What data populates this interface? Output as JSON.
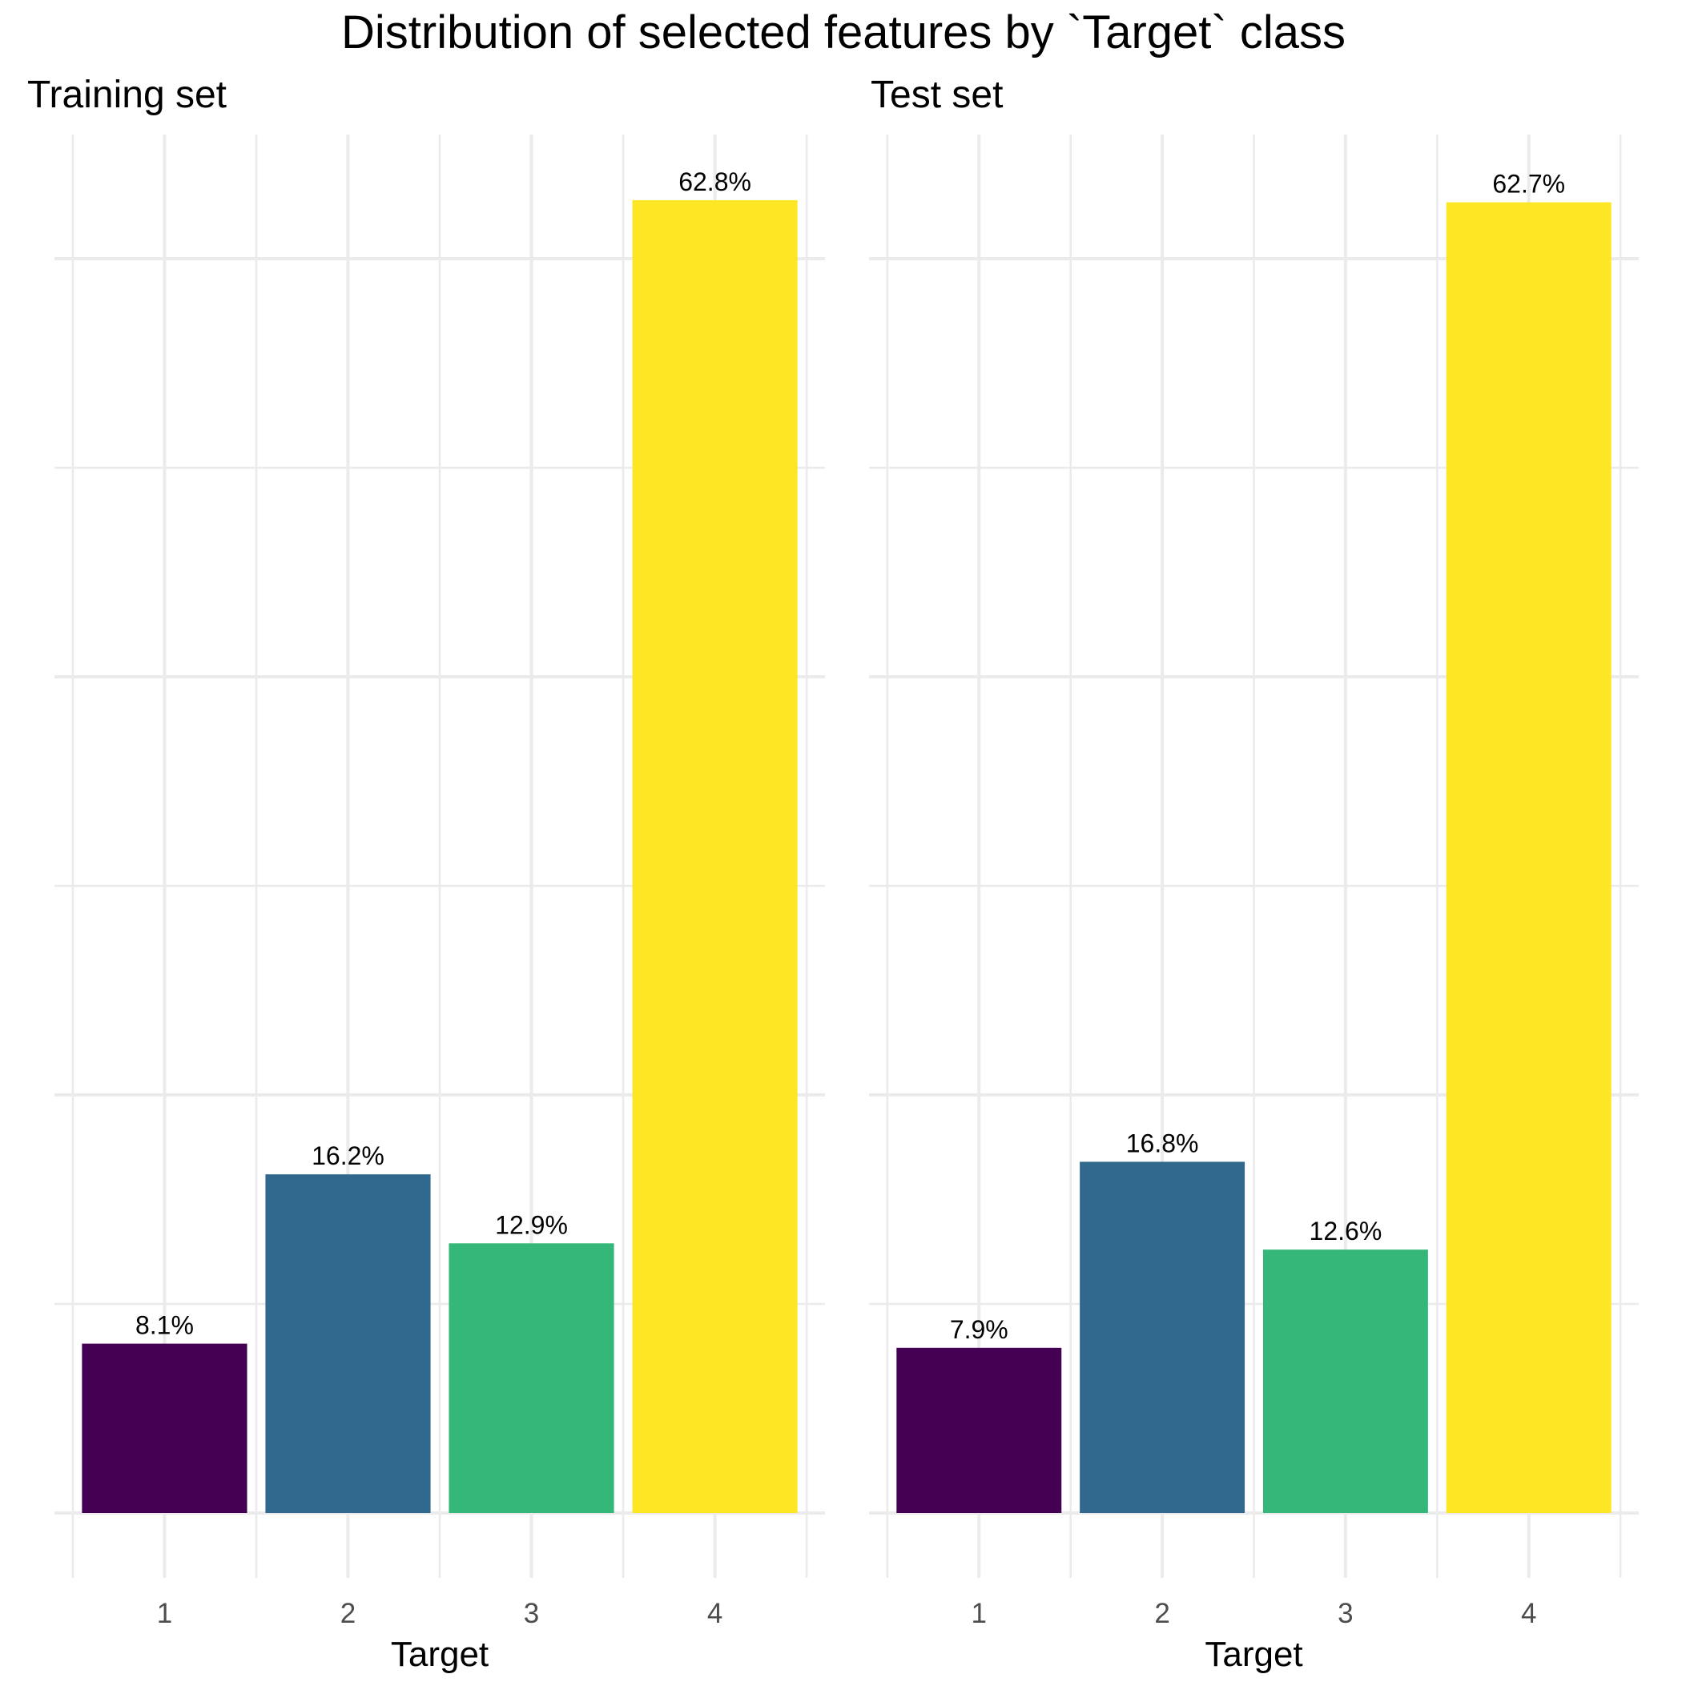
{
  "title": "Distribution of selected features by `Target` class",
  "chart_data": [
    {
      "type": "bar",
      "subtitle": "Training set",
      "xlabel": "Target",
      "ylabel": "",
      "categories": [
        "1",
        "2",
        "3",
        "4"
      ],
      "values": [
        8.1,
        16.2,
        12.9,
        62.8
      ],
      "labels": [
        "8.1%",
        "16.2%",
        "12.9%",
        "62.8%"
      ],
      "colors": [
        "#440154",
        "#31688e",
        "#35b779",
        "#fde725"
      ],
      "grid": true,
      "legend": "none"
    },
    {
      "type": "bar",
      "subtitle": "Test set",
      "xlabel": "Target",
      "ylabel": "",
      "categories": [
        "1",
        "2",
        "3",
        "4"
      ],
      "values": [
        7.9,
        16.8,
        12.6,
        62.7
      ],
      "labels": [
        "7.9%",
        "16.8%",
        "12.6%",
        "62.7%"
      ],
      "colors": [
        "#440154",
        "#31688e",
        "#35b779",
        "#fde725"
      ],
      "grid": true,
      "legend": "none"
    }
  ]
}
